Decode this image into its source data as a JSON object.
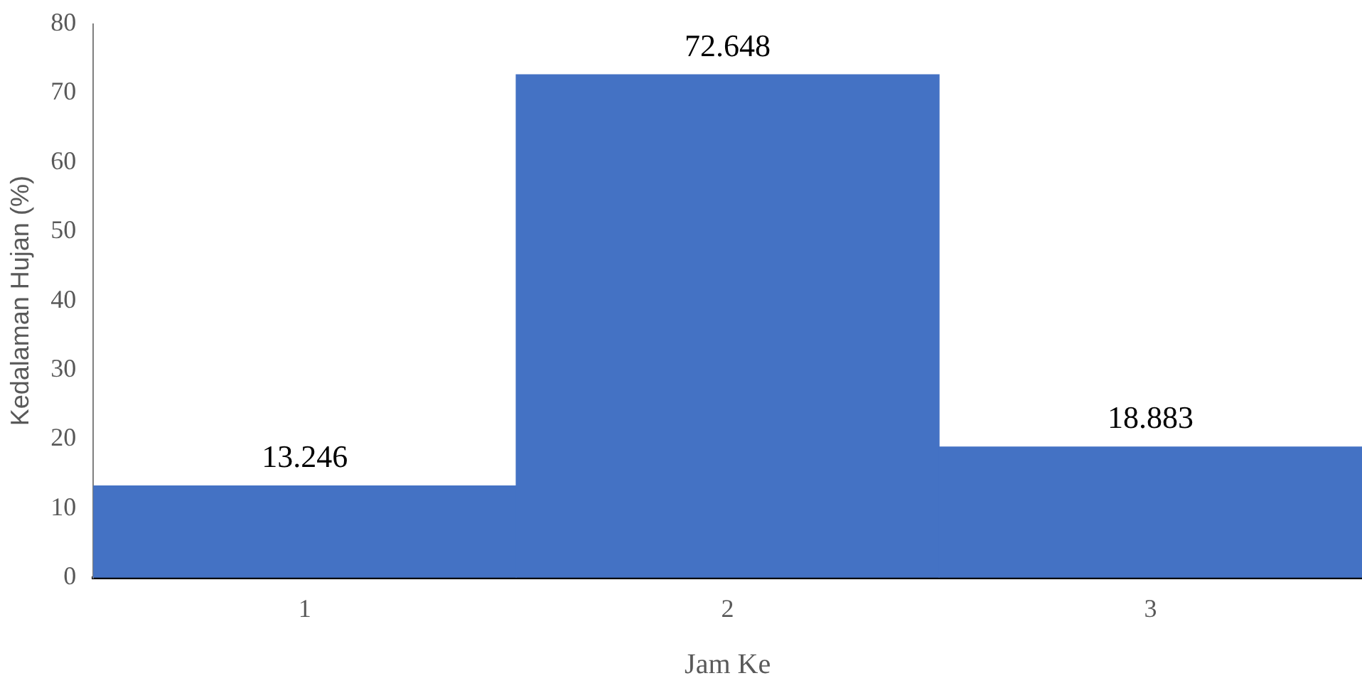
{
  "chart_data": {
    "type": "bar",
    "categories": [
      "1",
      "2",
      "3"
    ],
    "values": [
      13.246,
      72.648,
      18.883
    ],
    "color": "#4472c4",
    "xlabel": "Jam Ke",
    "ylabel": "Kedalaman Hujan (%)",
    "ylim": [
      0,
      80
    ],
    "yticks": [
      0,
      10,
      20,
      30,
      40,
      50,
      60,
      70,
      80
    ],
    "grid": false,
    "legend": false,
    "data_labels": true
  }
}
